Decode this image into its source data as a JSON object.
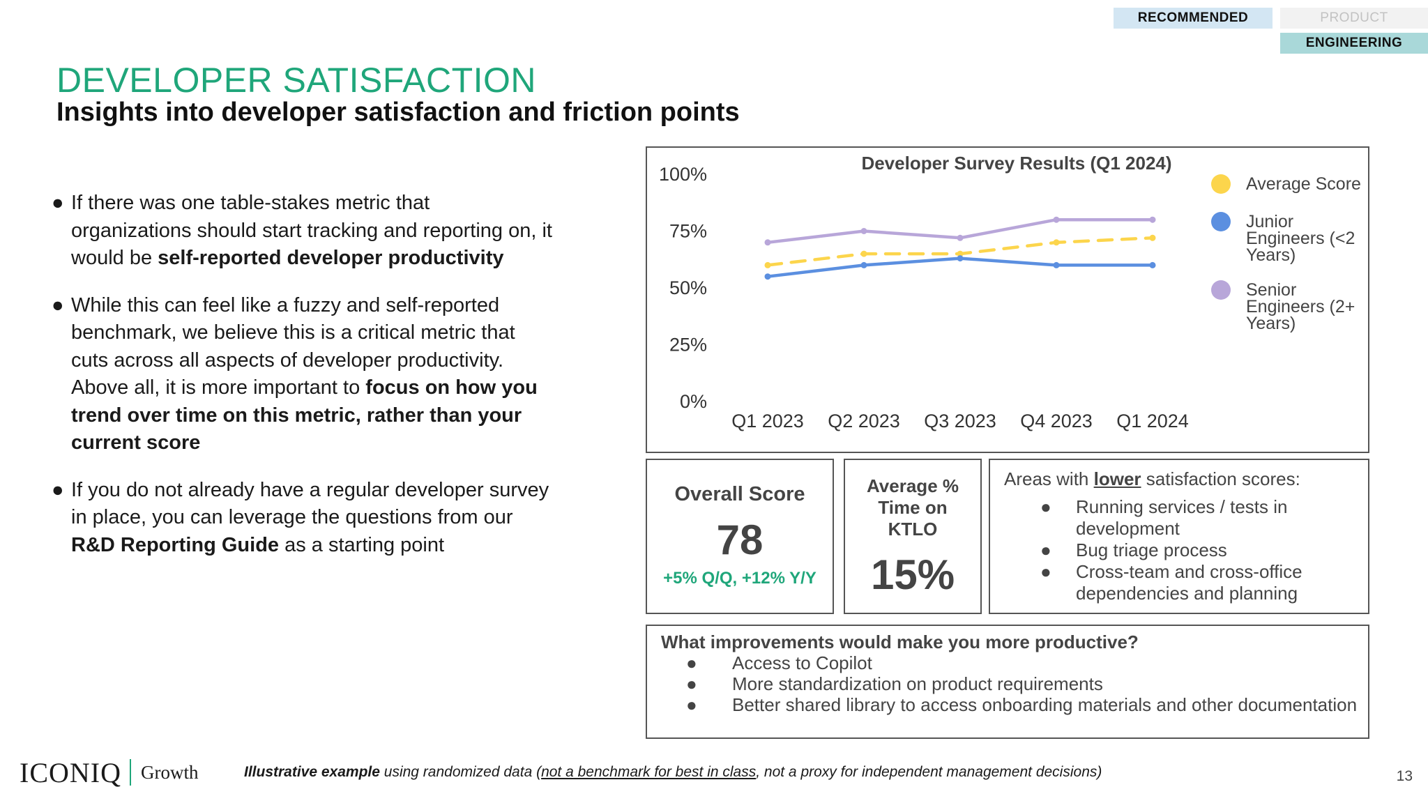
{
  "tags": {
    "recommended": "RECOMMENDED",
    "product": "PRODUCT",
    "engineering": "ENGINEERING"
  },
  "header": {
    "title": "DEVELOPER SATISFACTION",
    "subtitle": "Insights into developer satisfaction and friction points"
  },
  "bullets": {
    "b1": {
      "pre": "If there was one table-stakes metric that organizations should start tracking and reporting on, it would be ",
      "bold": "self-reported developer productivity",
      "post": ""
    },
    "b2": {
      "pre": "While this can feel like a fuzzy and self-reported benchmark, we believe this is a critical metric that cuts across all aspects of developer productivity. Above all, it is more important to ",
      "bold": "focus on how you trend over time on this metric, rather than your current score",
      "post": ""
    },
    "b3": {
      "pre": "If you do not already have a regular developer survey in place, you can leverage the questions from our ",
      "bold": "R&D Reporting Guide",
      "post": " as a starting point"
    }
  },
  "chart_data": {
    "type": "line",
    "title": "Developer Survey Results (Q1 2024)",
    "categories": [
      "Q1 2023",
      "Q2 2023",
      "Q3 2023",
      "Q4 2023",
      "Q1 2024"
    ],
    "yticks": [
      "0%",
      "25%",
      "50%",
      "75%",
      "100%"
    ],
    "ylim": [
      0,
      100
    ],
    "legend_position": "right",
    "grid": false,
    "series": [
      {
        "name": "Average Score",
        "values": [
          60,
          65,
          65,
          70,
          72
        ],
        "color": "#fcd54c",
        "dashed": true
      },
      {
        "name": "Junior Engineers (<2 Years)",
        "values": [
          55,
          60,
          63,
          60,
          60
        ],
        "color": "#5b8fe0",
        "dashed": false
      },
      {
        "name": "Senior Engineers (2+ Years)",
        "values": [
          70,
          75,
          72,
          80,
          80
        ],
        "color": "#b8a6d9",
        "dashed": false
      }
    ]
  },
  "score": {
    "label": "Overall Score",
    "value": "78",
    "change": "+5% Q/Q, +12% Y/Y"
  },
  "ktlo": {
    "label": "Average % Time on KTLO",
    "value": "15%"
  },
  "areas": {
    "heading_pre": "Areas with ",
    "heading_emph": "lower",
    "heading_post": " satisfaction scores:",
    "items": [
      "Running services / tests in development",
      "Bug triage process",
      "Cross-team and cross-office dependencies and planning"
    ]
  },
  "improvements": {
    "heading": "What improvements would make you more productive?",
    "items": [
      "Access to Copilot",
      "More standardization on product requirements",
      "Better shared library to access onboarding materials and other documentation"
    ]
  },
  "footer": {
    "logo_main": "ICONIQ",
    "logo_sub": "Growth",
    "footnote_bold": "Illustrative example",
    "footnote_mid": " using randomized data (",
    "footnote_underline": "not a benchmark for best in class",
    "footnote_end": ", not a proxy for independent management decisions)",
    "page_number": "13"
  },
  "bullet_glyph": "●",
  "colors": {
    "accent_green": "#1fa67a"
  }
}
